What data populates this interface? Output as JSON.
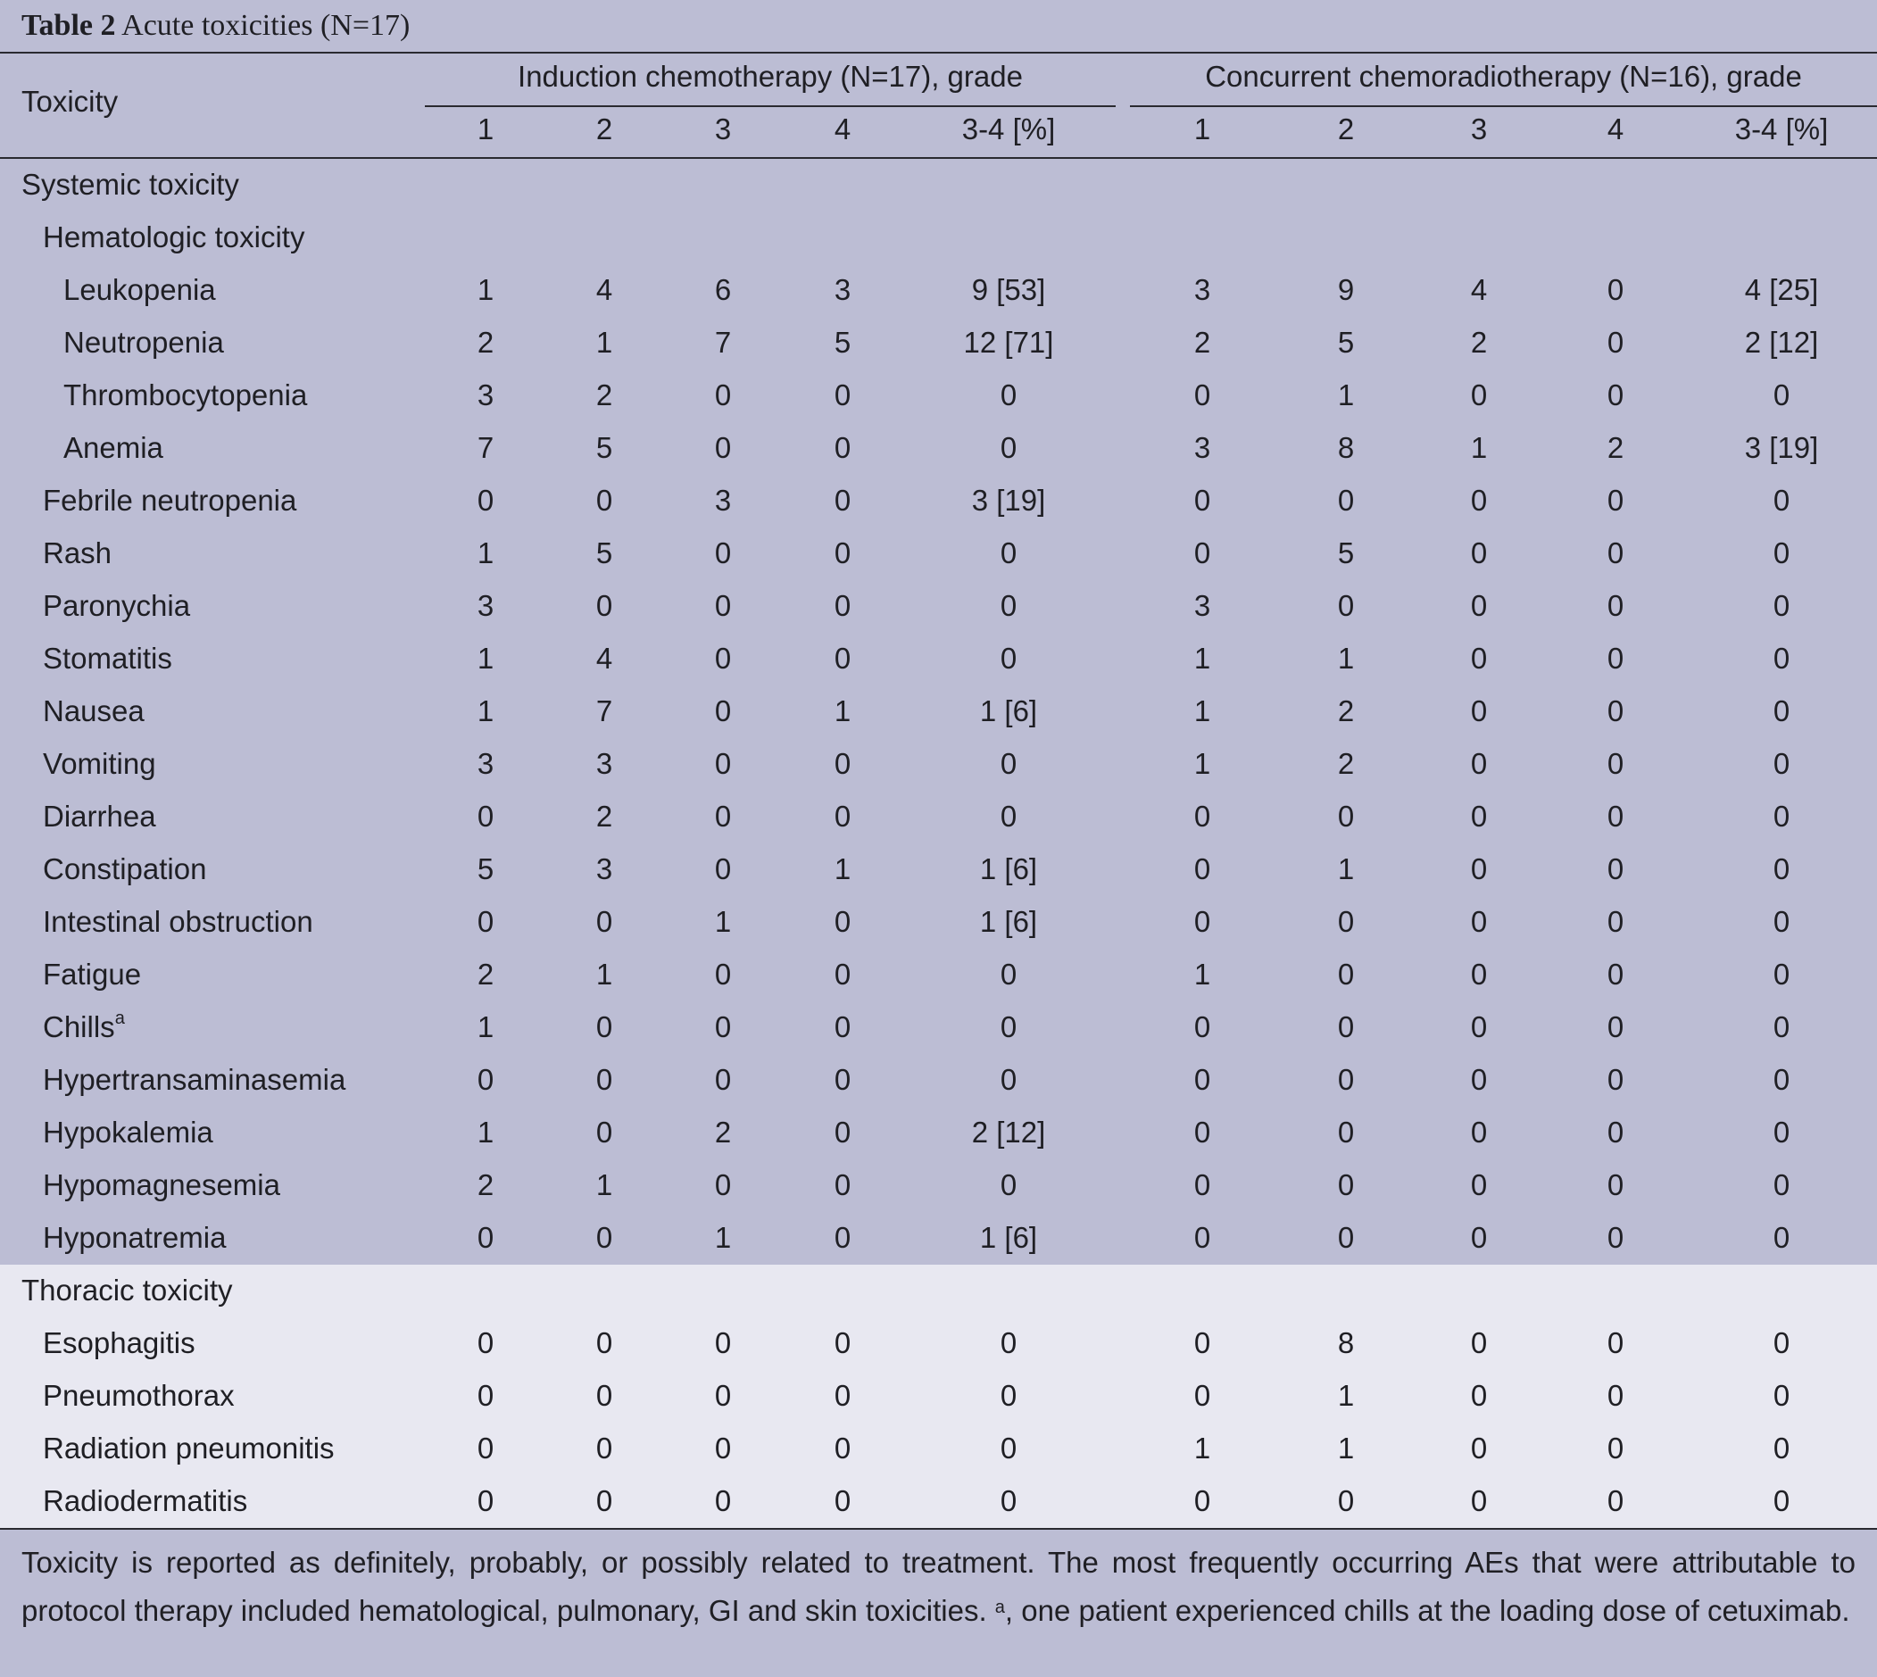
{
  "title": {
    "bold": "Table 2",
    "text": " Acute toxicities (N=17)"
  },
  "header": {
    "toxicity": "Toxicity",
    "group_induction": "Induction chemotherapy (N=17), grade",
    "group_concurrent": "Concurrent chemoradiotherapy (N=16), grade",
    "grades": [
      "1",
      "2",
      "3",
      "4",
      "3-4 [%]"
    ]
  },
  "rows": [
    {
      "label": "Systemic toxicity",
      "level": 0,
      "values": []
    },
    {
      "label": "Hematologic toxicity",
      "level": 1,
      "values": []
    },
    {
      "label": "Leukopenia",
      "level": 2,
      "values": [
        "1",
        "4",
        "6",
        "3",
        "9 [53]",
        "3",
        "9",
        "4",
        "0",
        "4 [25]"
      ]
    },
    {
      "label": "Neutropenia",
      "level": 2,
      "values": [
        "2",
        "1",
        "7",
        "5",
        "12 [71]",
        "2",
        "5",
        "2",
        "0",
        "2 [12]"
      ]
    },
    {
      "label": "Thrombocytopenia",
      "level": 2,
      "values": [
        "3",
        "2",
        "0",
        "0",
        "0",
        "0",
        "1",
        "0",
        "0",
        "0"
      ]
    },
    {
      "label": "Anemia",
      "level": 2,
      "values": [
        "7",
        "5",
        "0",
        "0",
        "0",
        "3",
        "8",
        "1",
        "2",
        "3 [19]"
      ]
    },
    {
      "label": "Febrile neutropenia",
      "level": 1,
      "values": [
        "0",
        "0",
        "3",
        "0",
        "3 [19]",
        "0",
        "0",
        "0",
        "0",
        "0"
      ]
    },
    {
      "label": "Rash",
      "level": 1,
      "values": [
        "1",
        "5",
        "0",
        "0",
        "0",
        "0",
        "5",
        "0",
        "0",
        "0"
      ]
    },
    {
      "label": "Paronychia",
      "level": 1,
      "values": [
        "3",
        "0",
        "0",
        "0",
        "0",
        "3",
        "0",
        "0",
        "0",
        "0"
      ]
    },
    {
      "label": "Stomatitis",
      "level": 1,
      "values": [
        "1",
        "4",
        "0",
        "0",
        "0",
        "1",
        "1",
        "0",
        "0",
        "0"
      ]
    },
    {
      "label": "Nausea",
      "level": 1,
      "values": [
        "1",
        "7",
        "0",
        "1",
        "1 [6]",
        "1",
        "2",
        "0",
        "0",
        "0"
      ]
    },
    {
      "label": "Vomiting",
      "level": 1,
      "values": [
        "3",
        "3",
        "0",
        "0",
        "0",
        "1",
        "2",
        "0",
        "0",
        "0"
      ]
    },
    {
      "label": "Diarrhea",
      "level": 1,
      "values": [
        "0",
        "2",
        "0",
        "0",
        "0",
        "0",
        "0",
        "0",
        "0",
        "0"
      ]
    },
    {
      "label": "Constipation",
      "level": 1,
      "values": [
        "5",
        "3",
        "0",
        "1",
        "1 [6]",
        "0",
        "1",
        "0",
        "0",
        "0"
      ]
    },
    {
      "label": "Intestinal obstruction",
      "level": 1,
      "values": [
        "0",
        "0",
        "1",
        "0",
        "1 [6]",
        "0",
        "0",
        "0",
        "0",
        "0"
      ]
    },
    {
      "label": "Fatigue",
      "level": 1,
      "values": [
        "2",
        "1",
        "0",
        "0",
        "0",
        "1",
        "0",
        "0",
        "0",
        "0"
      ]
    },
    {
      "label": "Chills",
      "sup": "a",
      "level": 1,
      "values": [
        "1",
        "0",
        "0",
        "0",
        "0",
        "0",
        "0",
        "0",
        "0",
        "0"
      ]
    },
    {
      "label": "Hypertransaminasemia",
      "level": 1,
      "values": [
        "0",
        "0",
        "0",
        "0",
        "0",
        "0",
        "0",
        "0",
        "0",
        "0"
      ]
    },
    {
      "label": "Hypokalemia",
      "level": 1,
      "values": [
        "1",
        "0",
        "2",
        "0",
        "2 [12]",
        "0",
        "0",
        "0",
        "0",
        "0"
      ]
    },
    {
      "label": "Hypomagnesemia",
      "level": 1,
      "values": [
        "2",
        "1",
        "0",
        "0",
        "0",
        "0",
        "0",
        "0",
        "0",
        "0"
      ]
    },
    {
      "label": "Hyponatremia",
      "level": 1,
      "values": [
        "0",
        "0",
        "1",
        "0",
        "1 [6]",
        "0",
        "0",
        "0",
        "0",
        "0"
      ]
    }
  ],
  "thoracic_rows": [
    {
      "label": "Thoracic toxicity",
      "level": 0,
      "values": []
    },
    {
      "label": "Esophagitis",
      "level": 1,
      "values": [
        "0",
        "0",
        "0",
        "0",
        "0",
        "0",
        "8",
        "0",
        "0",
        "0"
      ]
    },
    {
      "label": "Pneumothorax",
      "level": 1,
      "values": [
        "0",
        "0",
        "0",
        "0",
        "0",
        "0",
        "1",
        "0",
        "0",
        "0"
      ]
    },
    {
      "label": "Radiation pneumonitis",
      "level": 1,
      "values": [
        "0",
        "0",
        "0",
        "0",
        "0",
        "1",
        "1",
        "0",
        "0",
        "0"
      ]
    },
    {
      "label": "Radiodermatitis",
      "level": 1,
      "values": [
        "0",
        "0",
        "0",
        "0",
        "0",
        "0",
        "0",
        "0",
        "0",
        "0"
      ]
    }
  ],
  "footer": {
    "text_before": "Toxicity is reported as definitely, probably, or possibly related to treatment. The most frequently occurring AEs that were attributable to protocol therapy included hematological, pulmonary, GI and skin toxicities. ",
    "sup": "a",
    "text_after": ", one patient experienced chills at the loading dose of cetuximab."
  }
}
